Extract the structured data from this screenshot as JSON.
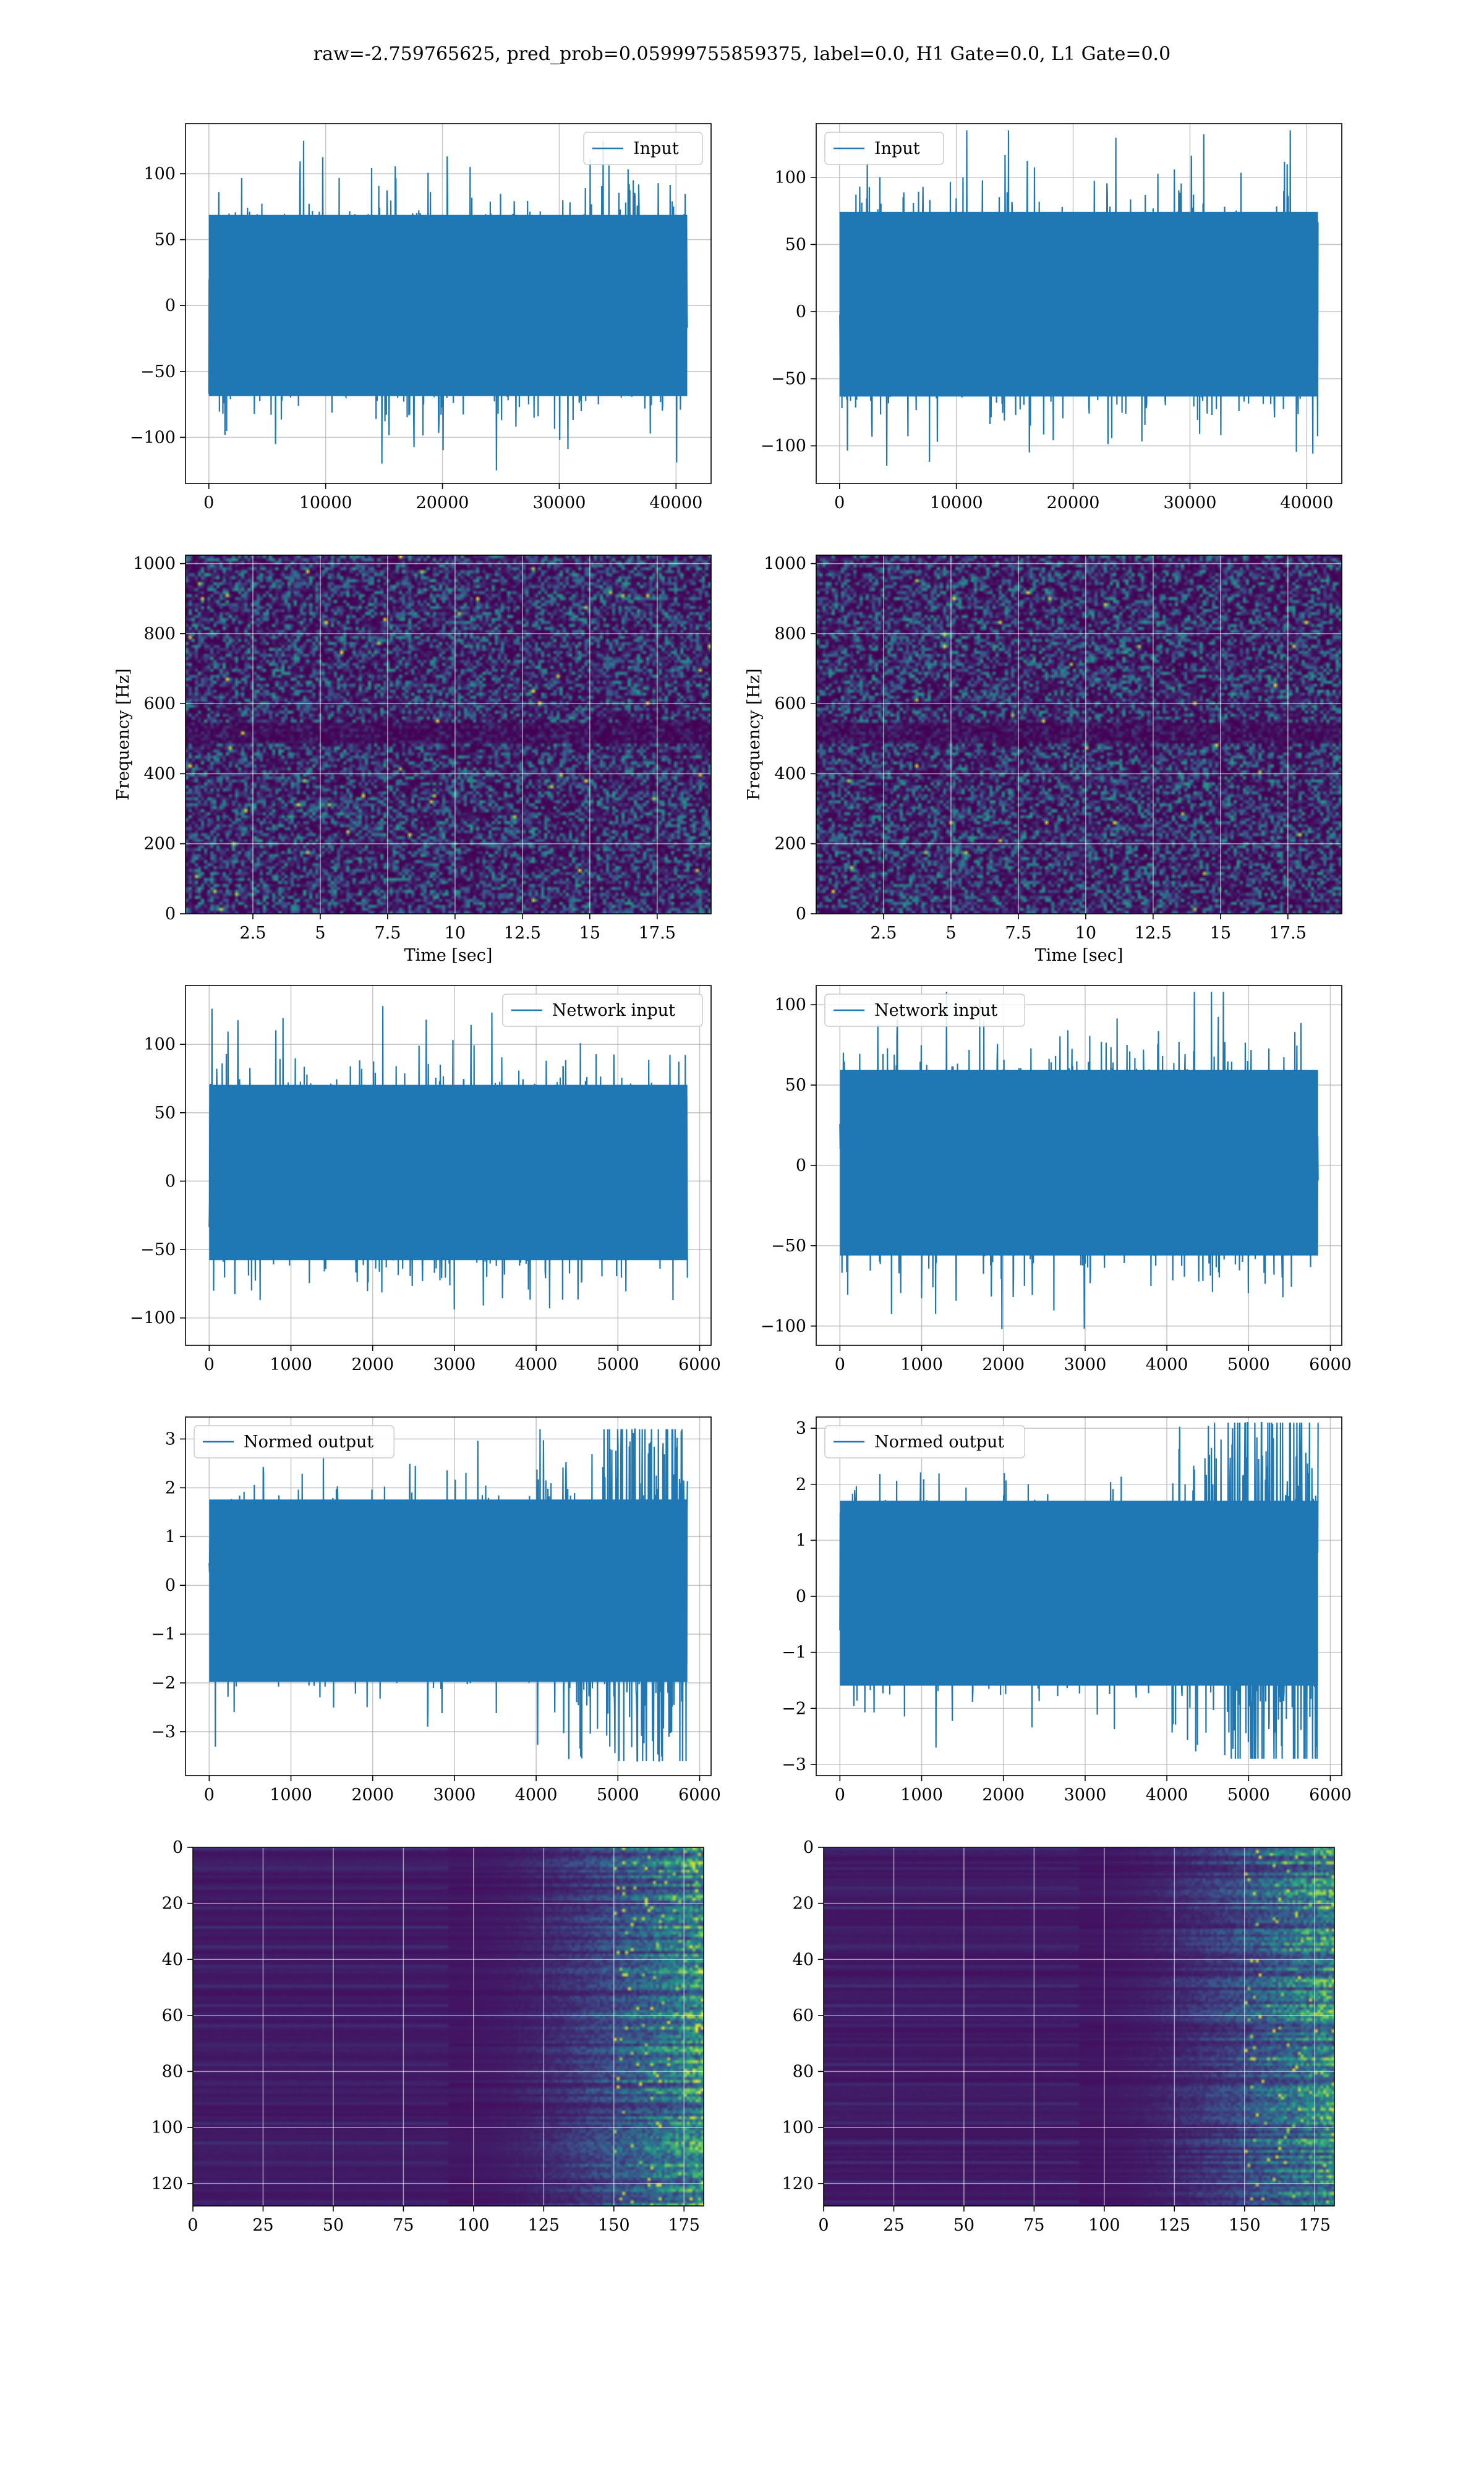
{
  "figure": {
    "title": "raw=-2.759765625, pred_prob=0.05999755859375, label=0.0, H1 Gate=0.0, L1 Gate=0.0"
  },
  "colors": {
    "line": "#1f77b4",
    "grid": "#b0b0b0",
    "viridis": [
      "#440154",
      "#3b528b",
      "#21918c",
      "#5ec962",
      "#fde725"
    ]
  },
  "chart_data": [
    {
      "id": "input-h1",
      "type": "line",
      "panel": "left",
      "series": [
        {
          "name": "Input",
          "x_range": [
            0,
            40960
          ],
          "amplitude_band": [
            -125,
            125
          ]
        }
      ],
      "legend": "top-right",
      "xlim": [
        -2000,
        43000
      ],
      "ylim": [
        -135,
        138
      ],
      "xticks": [
        0,
        10000,
        20000,
        30000,
        40000
      ],
      "yticks": [
        -100,
        -50,
        0,
        50,
        100
      ],
      "grid": true
    },
    {
      "id": "input-l1",
      "type": "line",
      "panel": "right",
      "series": [
        {
          "name": "Input",
          "x_range": [
            0,
            40960
          ],
          "amplitude_band": [
            -115,
            135
          ]
        }
      ],
      "legend": "top-left",
      "xlim": [
        -2000,
        43000
      ],
      "ylim": [
        -128,
        140
      ],
      "xticks": [
        0,
        10000,
        20000,
        30000,
        40000
      ],
      "yticks": [
        -100,
        -50,
        0,
        50,
        100
      ],
      "grid": true
    },
    {
      "id": "spectrogram-h1",
      "type": "heatmap",
      "panel": "left",
      "xlabel": "Time [sec]",
      "ylabel": "Frequency [Hz]",
      "xlim": [
        0,
        19.5
      ],
      "ylim": [
        0,
        1024
      ],
      "xticks": [
        2.5,
        5.0,
        7.5,
        10.0,
        12.5,
        15.0,
        17.5
      ],
      "yticks": [
        0,
        200,
        400,
        600,
        800,
        1000
      ],
      "grid": true
    },
    {
      "id": "spectrogram-l1",
      "type": "heatmap",
      "panel": "right",
      "xlabel": "Time [sec]",
      "ylabel": "Frequency [Hz]",
      "xlim": [
        0,
        19.5
      ],
      "ylim": [
        0,
        1024
      ],
      "xticks": [
        2.5,
        5.0,
        7.5,
        10.0,
        12.5,
        15.0,
        17.5
      ],
      "yticks": [
        0,
        200,
        400,
        600,
        800,
        1000
      ],
      "grid": true
    },
    {
      "id": "network-input-h1",
      "type": "line",
      "panel": "left",
      "series": [
        {
          "name": "Network input",
          "x_range": [
            0,
            5850
          ],
          "amplitude_band": [
            -105,
            128
          ]
        }
      ],
      "legend": "top-right",
      "xlim": [
        -290,
        6140
      ],
      "ylim": [
        -120,
        143
      ],
      "xticks": [
        0,
        1000,
        2000,
        3000,
        4000,
        5000,
        6000
      ],
      "yticks": [
        -100,
        -50,
        0,
        50,
        100
      ],
      "grid": true
    },
    {
      "id": "network-input-l1",
      "type": "line",
      "panel": "right",
      "series": [
        {
          "name": "Network input",
          "x_range": [
            0,
            5850
          ],
          "amplitude_band": [
            -102,
            108
          ]
        }
      ],
      "legend": "top-left",
      "xlim": [
        -290,
        6140
      ],
      "ylim": [
        -112,
        112
      ],
      "xticks": [
        0,
        1000,
        2000,
        3000,
        4000,
        5000,
        6000
      ],
      "yticks": [
        -100,
        -50,
        0,
        50,
        100
      ],
      "grid": true
    },
    {
      "id": "normed-output-h1",
      "type": "line",
      "panel": "left",
      "series": [
        {
          "name": "Normed output",
          "x_range": [
            0,
            5850
          ],
          "amplitude_band": [
            -3.6,
            3.2
          ],
          "burst_start": 4750
        }
      ],
      "legend": "top-left",
      "xlim": [
        -290,
        6140
      ],
      "ylim": [
        -3.9,
        3.45
      ],
      "xticks": [
        0,
        1000,
        2000,
        3000,
        4000,
        5000,
        6000
      ],
      "yticks": [
        -3,
        -2,
        -1,
        0,
        1,
        2,
        3
      ],
      "grid": true
    },
    {
      "id": "normed-output-l1",
      "type": "line",
      "panel": "right",
      "series": [
        {
          "name": "Normed output",
          "x_range": [
            0,
            5850
          ],
          "amplitude_band": [
            -2.9,
            3.1
          ],
          "burst_start": 4750
        }
      ],
      "legend": "top-left",
      "xlim": [
        -290,
        6140
      ],
      "ylim": [
        -3.2,
        3.2
      ],
      "xticks": [
        0,
        1000,
        2000,
        3000,
        4000,
        5000,
        6000
      ],
      "yticks": [
        -3,
        -2,
        -1,
        0,
        1,
        2,
        3
      ],
      "grid": true
    },
    {
      "id": "feature-map-h1",
      "type": "heatmap",
      "panel": "left",
      "xlim": [
        0,
        182
      ],
      "ylim": [
        128,
        0
      ],
      "rows": 128,
      "cols": 182,
      "xticks": [
        0,
        25,
        50,
        75,
        100,
        125,
        150,
        175
      ],
      "yticks": [
        0,
        20,
        40,
        60,
        80,
        100,
        120
      ],
      "grid": true
    },
    {
      "id": "feature-map-l1",
      "type": "heatmap",
      "panel": "right",
      "xlim": [
        0,
        182
      ],
      "ylim": [
        128,
        0
      ],
      "rows": 128,
      "cols": 182,
      "xticks": [
        0,
        25,
        50,
        75,
        100,
        125,
        150,
        175
      ],
      "yticks": [
        0,
        20,
        40,
        60,
        80,
        100,
        120
      ],
      "grid": true
    }
  ]
}
